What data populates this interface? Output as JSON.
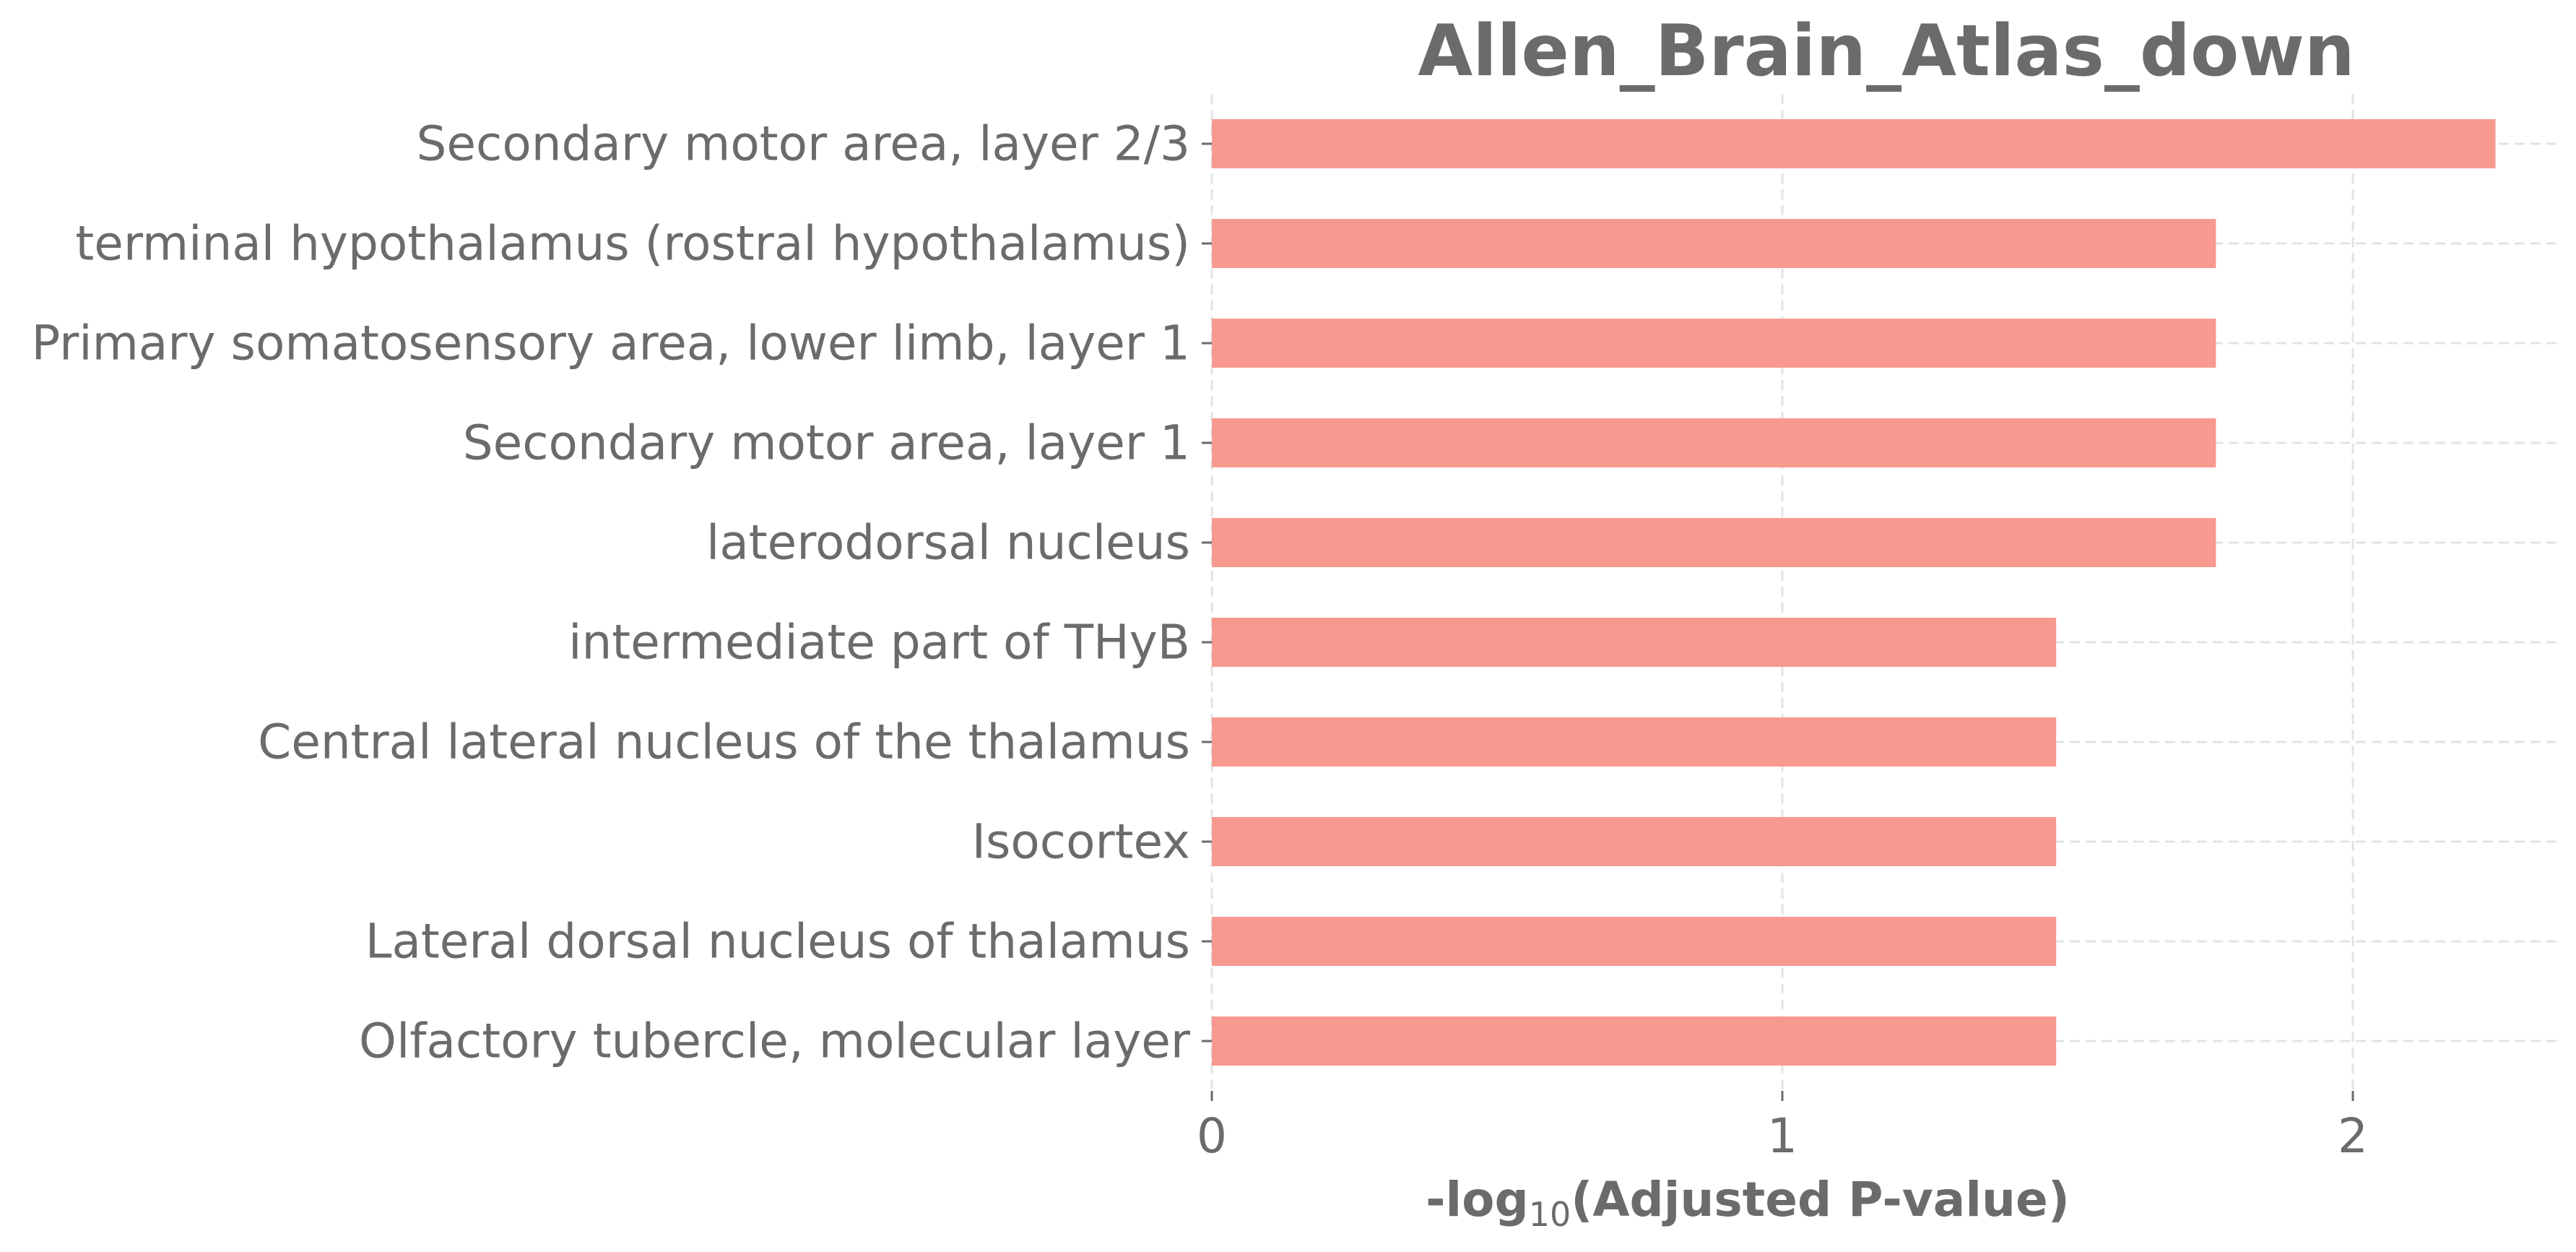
{
  "chart_data": {
    "type": "bar",
    "orientation": "horizontal",
    "title": "Allen_Brain_Atlas_down",
    "xlabel": {
      "prefix": "-log",
      "subscript": "10",
      "suffix": "(Adjusted P-value)"
    },
    "ylabel": "",
    "categories": [
      "Secondary motor area, layer 2/3",
      "terminal hypothalamus (rostral hypothalamus)",
      "Primary somatosensory area, lower limb, layer 1",
      "Secondary motor area, layer 1",
      "laterodorsal nucleus",
      "intermediate part of THyB",
      "Central lateral nucleus of the thalamus",
      "Isocortex",
      "Lateral dorsal nucleus of thalamus",
      "Olfactory tubercle, molecular layer"
    ],
    "values": [
      2.25,
      1.76,
      1.76,
      1.76,
      1.76,
      1.48,
      1.48,
      1.48,
      1.48,
      1.48
    ],
    "xlim": [
      0,
      2.36
    ],
    "xticks": [
      0,
      1,
      2
    ],
    "grid": true,
    "bar_color": "#f8998f",
    "text_color": "#6b6b6e",
    "grid_color": "#e3e3e3"
  }
}
